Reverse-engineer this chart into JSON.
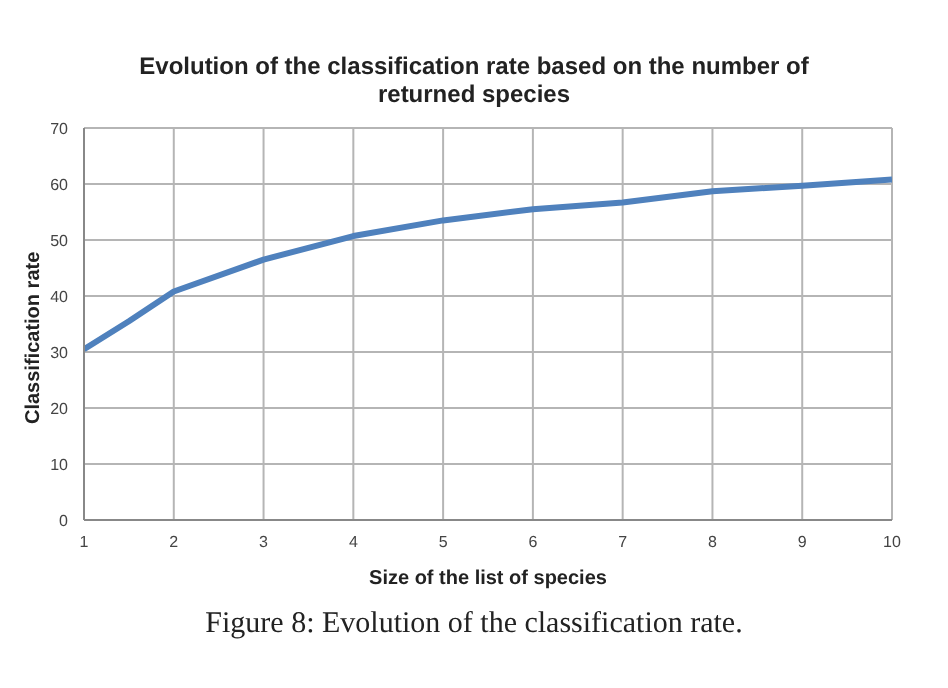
{
  "chart_data": {
    "type": "line",
    "title": "Evolution of the classification rate based on the number of returned species",
    "xlabel": "Size of the list of species",
    "ylabel": "Classification rate",
    "annotations": [
      "Figure 8: Evolution of the classification rate."
    ],
    "x": [
      1,
      1.5,
      2,
      3,
      4,
      5,
      6,
      7,
      8,
      9,
      10
    ],
    "series": [
      {
        "color": "#4f81bd",
        "values": [
          30.5,
          35.5,
          40.8,
          46.5,
          50.7,
          53.5,
          55.5,
          56.7,
          58.7,
          59.7,
          60.8
        ]
      }
    ],
    "xlim": [
      1,
      10
    ],
    "xticks": [
      1,
      2,
      3,
      4,
      5,
      6,
      7,
      8,
      9,
      10
    ],
    "ylim": [
      0,
      70
    ],
    "yticks": [
      0,
      10,
      20,
      30,
      40,
      50,
      60,
      70
    ],
    "grid": true,
    "legend": false,
    "marker": "none",
    "line_style": "solid"
  }
}
